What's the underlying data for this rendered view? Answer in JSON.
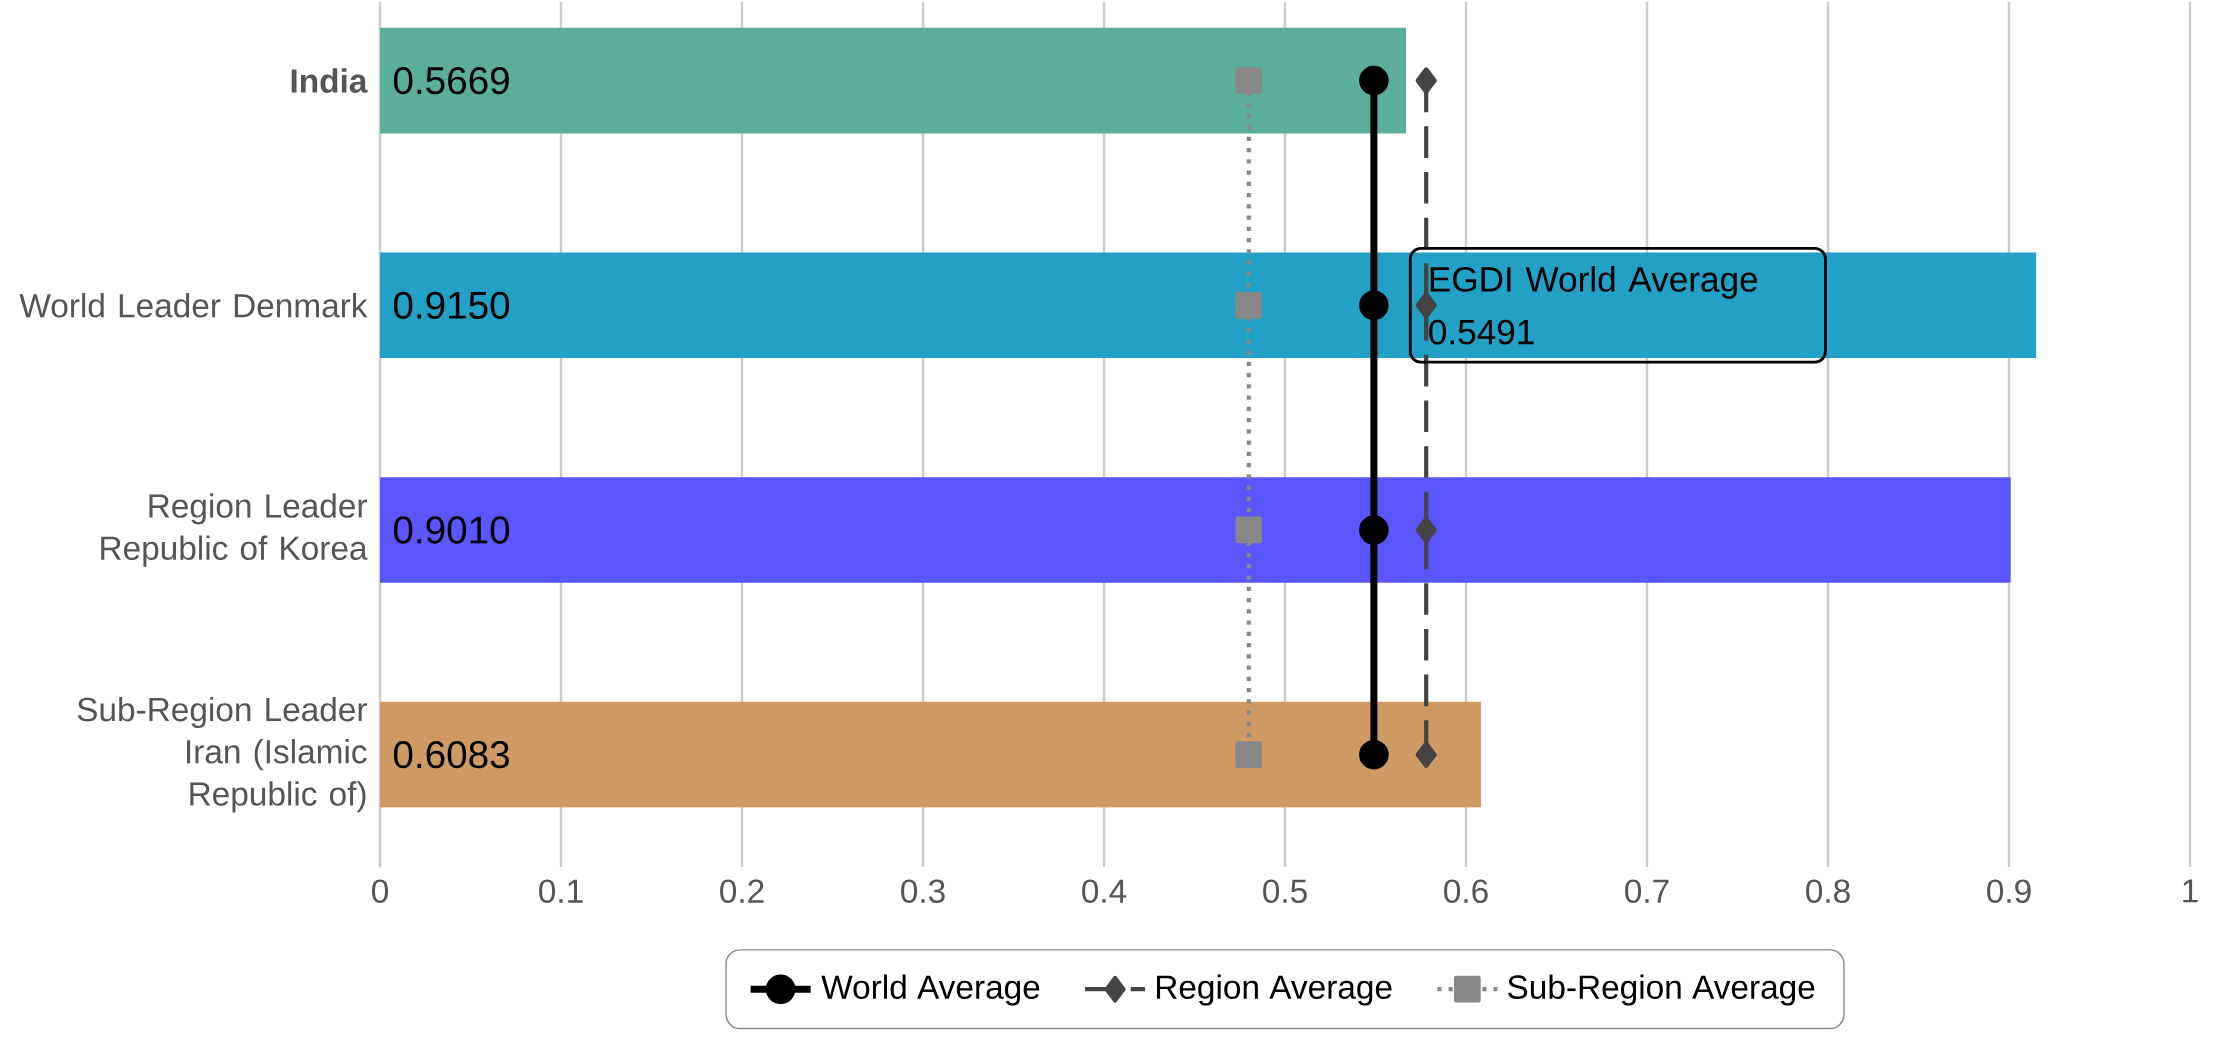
{
  "chart_data": {
    "type": "bar",
    "orientation": "horizontal",
    "categories": [
      "**India**",
      "World Leader Denmark",
      "Region Leader Republic of Korea",
      "Sub-Region Leader Iran (Islamic Republic of)"
    ],
    "series": [
      {
        "colors": [
          "#5bae9c",
          "#23a0c5",
          "#5a55fd",
          "#d09a65"
        ],
        "values": [
          0.5669,
          0.915,
          0.901,
          0.6083
        ],
        "value_labels": [
          "0.5669",
          "0.9150",
          "0.9010",
          "0.6083"
        ]
      },
      {
        "type": "line",
        "name": "World Average",
        "color": "#000000",
        "marker": "circle",
        "line_style": "solid",
        "values": [
          0.5491,
          0.5491,
          0.5491,
          0.5491
        ]
      },
      {
        "type": "line",
        "name": "Region Average",
        "color": "#444444",
        "marker": "diamond",
        "line_style": "dashed",
        "values": [
          0.578,
          0.578,
          0.578,
          0.578
        ]
      },
      {
        "type": "line",
        "name": "Sub-Region Average",
        "color": "#888888",
        "marker": "square",
        "line_style": "dotted",
        "values": [
          0.48,
          0.48,
          0.48,
          0.48
        ]
      }
    ],
    "xlim": [
      0,
      1
    ],
    "xticks": [
      0,
      0.1,
      0.2,
      0.3,
      0.4,
      0.5,
      0.6,
      0.7,
      0.8,
      0.9,
      1
    ],
    "grid": "x",
    "legend": "bottom",
    "annotations": [
      {
        "text": "EGDI World Average 0.5491",
        "x": 0.5491,
        "y": "World Leader Denmark"
      }
    ]
  }
}
